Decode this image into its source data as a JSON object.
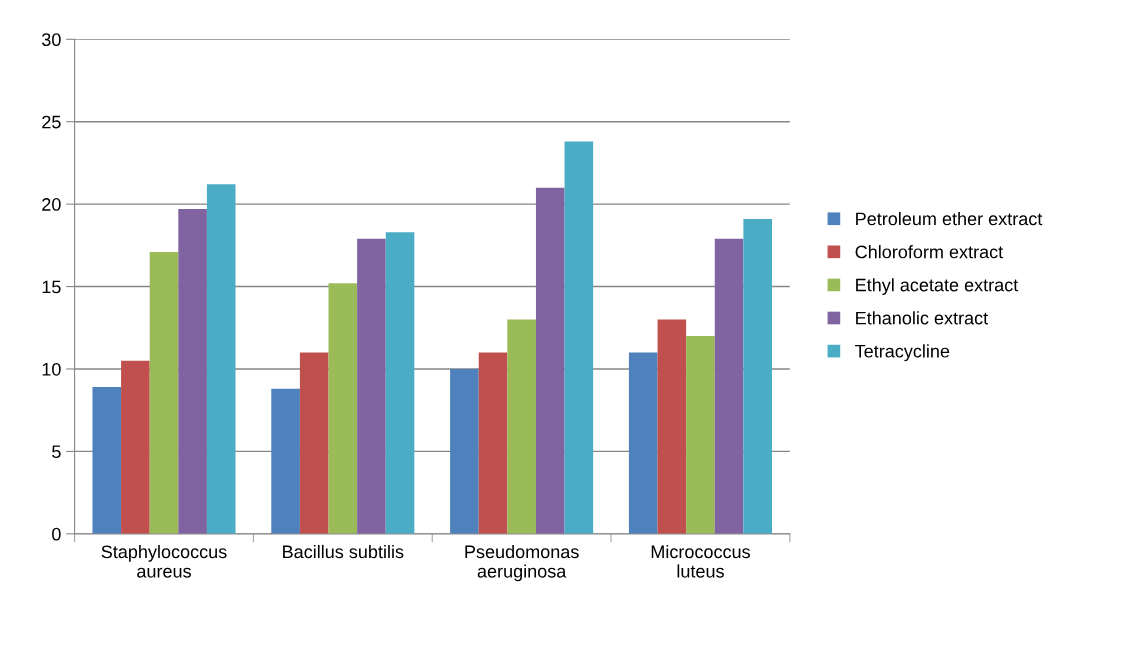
{
  "chart_data": {
    "type": "bar",
    "categories": [
      "Staphylococcus\naureus",
      "Bacillus subtilis",
      "Pseudomonas\naeruginosa",
      "Micrococcus\nluteus"
    ],
    "series": [
      {
        "name": "Petroleum ether extract",
        "color": "#4f81bd",
        "values": [
          8.9,
          8.8,
          10.0,
          11.0
        ]
      },
      {
        "name": "Chloroform extract",
        "color": "#c0504d",
        "values": [
          10.5,
          11.0,
          11.0,
          13.0
        ]
      },
      {
        "name": "Ethyl acetate extract",
        "color": "#9bbb59",
        "values": [
          17.1,
          15.2,
          13.0,
          12.0
        ]
      },
      {
        "name": "Ethanolic extract",
        "color": "#8064a2",
        "values": [
          19.7,
          17.9,
          21.0,
          17.9
        ]
      },
      {
        "name": "Tetracycline",
        "color": "#4bacc6",
        "values": [
          21.2,
          18.3,
          23.8,
          19.1
        ]
      }
    ],
    "ylim": [
      0,
      30
    ],
    "yticks": [
      0,
      5,
      10,
      15,
      20,
      25,
      30
    ],
    "grid": "y",
    "legend": "right"
  }
}
